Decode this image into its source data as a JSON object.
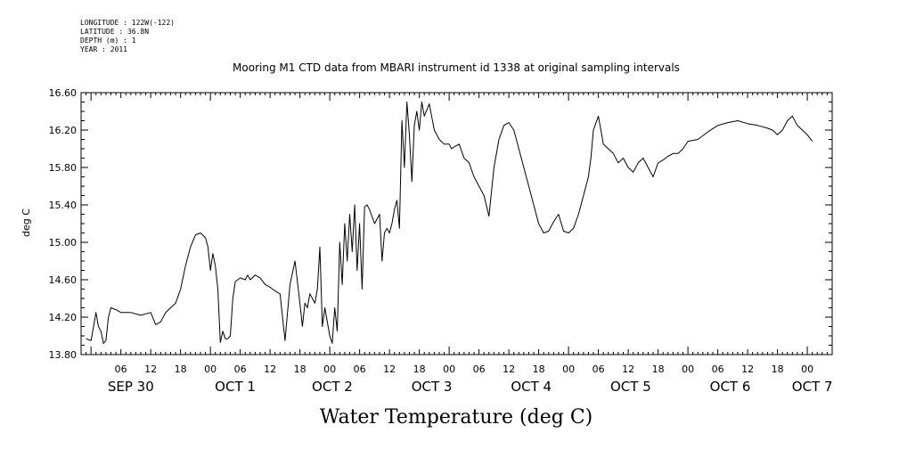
{
  "meta": {
    "longitude": "LONGITUDE : 122W(-122)",
    "latitude": "LATITUDE : 36.8N",
    "depth": "DEPTH (m) : 1",
    "year": "YEAR : 2011"
  },
  "chart_data": {
    "type": "line",
    "title": "Mooring M1 CTD data from MBARI instrument id 1338 at original sampling intervals",
    "ylabel": "deg C",
    "xlabel": "Water Temperature (deg C)",
    "ylim": [
      13.8,
      16.6
    ],
    "xlim_hours": [
      -2,
      149
    ],
    "y_ticks": [
      13.8,
      14.2,
      14.6,
      15.0,
      15.4,
      15.8,
      16.2,
      16.6
    ],
    "y_tick_labels": [
      "13.80",
      "14.20",
      "14.60",
      "15.00",
      "15.40",
      "15.80",
      "16.20",
      "16.60"
    ],
    "x_hour_ticks": [
      6,
      12,
      18,
      24,
      30,
      36,
      42,
      48,
      54,
      60,
      66,
      72,
      78,
      84,
      90,
      96,
      102,
      108,
      114,
      120,
      126,
      132,
      138,
      144
    ],
    "x_hour_tick_labels": [
      "06",
      "12",
      "18",
      "00",
      "06",
      "12",
      "18",
      "00",
      "06",
      "12",
      "18",
      "00",
      "06",
      "12",
      "18",
      "00",
      "06",
      "12",
      "18",
      "00",
      "06",
      "12",
      "18",
      "00"
    ],
    "day_labels": [
      {
        "hour": 8,
        "text": "SEP 30"
      },
      {
        "hour": 29,
        "text": "OCT  1"
      },
      {
        "hour": 48.5,
        "text": "OCT  2"
      },
      {
        "hour": 68.5,
        "text": "OCT  3"
      },
      {
        "hour": 88.5,
        "text": "OCT  4"
      },
      {
        "hour": 108.5,
        "text": "OCT  5"
      },
      {
        "hour": 128.5,
        "text": "OCT  6"
      },
      {
        "hour": 145,
        "text": "OCT  7"
      }
    ],
    "series": [
      {
        "x_hours": [
          -1,
          0,
          0.5,
          1,
          1.5,
          2,
          2.5,
          3,
          3.5,
          4,
          5,
          6,
          8,
          10,
          12,
          13,
          14,
          15,
          16,
          17,
          18,
          19,
          20,
          21,
          22,
          23,
          23.5,
          24,
          24.5,
          25,
          25.5,
          26,
          26.5,
          27,
          27.5,
          28,
          28.5,
          29,
          30,
          31,
          31.5,
          32,
          33,
          34,
          35,
          36,
          37,
          38,
          39,
          40,
          41,
          42,
          42.5,
          43,
          43.5,
          44,
          44.5,
          45,
          45.5,
          46,
          46.5,
          47,
          48,
          48.5,
          49,
          49.5,
          50,
          50.5,
          51,
          51.5,
          52,
          52.5,
          53,
          53.5,
          54,
          54.5,
          55,
          55.5,
          56,
          57,
          58,
          58.5,
          59,
          59.5,
          60,
          60.5,
          61,
          61.5,
          62,
          62.5,
          63,
          63.5,
          64,
          64.5,
          65,
          65.5,
          66,
          66.5,
          67,
          68,
          69,
          70,
          71,
          72,
          72.5,
          73,
          74,
          75,
          76,
          77,
          78,
          79,
          80,
          81,
          82,
          83,
          84,
          85,
          86,
          87,
          88,
          89,
          90,
          91,
          92,
          93,
          94,
          95,
          96,
          97,
          98,
          99,
          100,
          100.5,
          101,
          102,
          103,
          104,
          105,
          106,
          107,
          108,
          109,
          110,
          111,
          112,
          113,
          114,
          115,
          116,
          117,
          118,
          119,
          120,
          122,
          124,
          126,
          128,
          130,
          132,
          134,
          136,
          137,
          138,
          139,
          140,
          141,
          142,
          143,
          144,
          145
        ],
        "y": [
          13.97,
          13.95,
          14.1,
          14.25,
          14.1,
          14.05,
          13.92,
          13.95,
          14.2,
          14.3,
          14.28,
          14.25,
          14.25,
          14.22,
          14.25,
          14.12,
          14.15,
          14.25,
          14.3,
          14.35,
          14.5,
          14.75,
          14.95,
          15.08,
          15.1,
          15.05,
          14.95,
          14.7,
          14.88,
          14.75,
          14.5,
          13.93,
          14.05,
          13.97,
          13.97,
          14.0,
          14.4,
          14.58,
          14.62,
          14.6,
          14.65,
          14.6,
          14.65,
          14.62,
          14.55,
          14.52,
          14.48,
          14.45,
          13.95,
          14.55,
          14.8,
          14.35,
          14.1,
          14.35,
          14.3,
          14.45,
          14.4,
          14.35,
          14.5,
          14.95,
          14.1,
          14.3,
          14.0,
          13.92,
          14.3,
          14.05,
          15.0,
          14.55,
          15.2,
          14.8,
          15.3,
          14.9,
          15.4,
          14.7,
          15.2,
          14.5,
          15.38,
          15.4,
          15.35,
          15.2,
          15.3,
          14.8,
          15.1,
          15.15,
          15.1,
          15.2,
          15.35,
          15.45,
          15.15,
          16.3,
          15.8,
          16.5,
          16.15,
          15.65,
          16.25,
          16.4,
          16.2,
          16.5,
          16.35,
          16.48,
          16.2,
          16.1,
          16.05,
          16.05,
          16.0,
          16.02,
          16.05,
          15.9,
          15.85,
          15.7,
          15.6,
          15.5,
          15.28,
          15.8,
          16.1,
          16.25,
          16.28,
          16.2,
          16.0,
          15.8,
          15.6,
          15.4,
          15.2,
          15.1,
          15.12,
          15.22,
          15.3,
          15.12,
          15.1,
          15.15,
          15.3,
          15.5,
          15.7,
          15.9,
          16.2,
          16.35,
          16.05,
          16.0,
          15.95,
          15.85,
          15.9,
          15.8,
          15.75,
          15.85,
          15.9,
          15.8,
          15.7,
          15.85,
          15.88,
          15.92,
          15.95,
          15.95,
          16.0,
          16.08,
          16.1,
          16.18,
          16.25,
          16.28,
          16.3,
          16.27,
          16.25,
          16.22,
          16.2,
          16.15,
          16.2,
          16.3,
          16.35,
          16.25,
          16.2,
          16.15,
          16.08
        ]
      }
    ],
    "grid": false,
    "line_color": "#000000"
  }
}
